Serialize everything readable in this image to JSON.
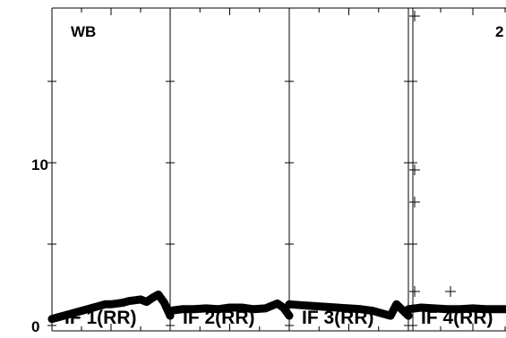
{
  "chart_data": {
    "type": "line",
    "ylim": [
      0,
      19
    ],
    "yticks": [
      0,
      10
    ],
    "ytick_labels": [
      "0",
      "10"
    ],
    "panel_labels": [
      "WB",
      "2"
    ],
    "panels": [
      {
        "trace_label": "IF 1(RR)",
        "x": [
          0,
          0.05,
          0.1,
          0.15,
          0.2,
          0.25,
          0.3,
          0.35,
          0.4,
          0.45,
          0.5,
          0.55,
          0.6,
          0.65,
          0.7,
          0.75,
          0.8,
          0.85,
          0.9,
          0.95,
          1.0
        ],
        "values": [
          0.4,
          0.5,
          0.6,
          0.7,
          0.8,
          0.9,
          1.0,
          1.1,
          1.2,
          1.3,
          1.3,
          1.35,
          1.4,
          1.5,
          1.55,
          1.6,
          1.45,
          1.7,
          1.9,
          1.4,
          0.6
        ]
      },
      {
        "trace_label": "IF 2(RR)",
        "x": [
          0,
          0.1,
          0.2,
          0.3,
          0.4,
          0.5,
          0.6,
          0.7,
          0.8,
          0.9,
          0.95,
          1.0
        ],
        "values": [
          0.9,
          1.0,
          1.0,
          1.05,
          1.0,
          1.1,
          1.1,
          1.0,
          1.05,
          1.35,
          1.1,
          0.6
        ]
      },
      {
        "trace_label": "IF 3(RR)",
        "x": [
          0,
          0.1,
          0.2,
          0.3,
          0.4,
          0.5,
          0.6,
          0.7,
          0.8,
          0.85,
          0.9,
          1.0
        ],
        "values": [
          1.3,
          1.25,
          1.2,
          1.15,
          1.1,
          1.05,
          1.0,
          0.9,
          0.7,
          0.6,
          1.3,
          0.6
        ]
      },
      {
        "trace_label": "IF 4(RR)",
        "x": [
          0,
          0.1,
          0.2,
          0.3,
          0.4,
          0.5,
          0.6,
          0.7,
          0.8,
          0.9,
          1.0
        ],
        "values": [
          1.0,
          1.1,
          1.05,
          1.0,
          1.0,
          1.05,
          1.0,
          1.0,
          1.0,
          1.05,
          1.0
        ]
      }
    ]
  }
}
